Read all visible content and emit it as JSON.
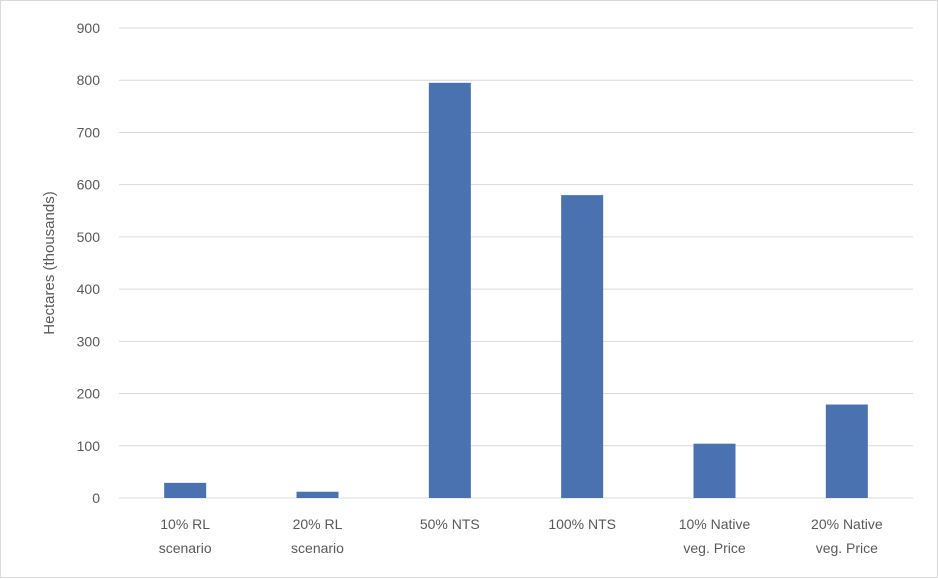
{
  "chart_data": {
    "type": "bar",
    "title": "",
    "xlabel": "",
    "ylabel": "Hectares (thousands)",
    "ylim": [
      0,
      900
    ],
    "yticks": [
      0,
      100,
      200,
      300,
      400,
      500,
      600,
      700,
      800,
      900
    ],
    "grid": true,
    "legend": "none",
    "bar_color": "#4a72b0",
    "grid_color": "#d9d9d9",
    "categories": [
      [
        "10% RL",
        "scenario"
      ],
      [
        "20% RL",
        "scenario"
      ],
      [
        "50% NTS"
      ],
      [
        "100% NTS"
      ],
      [
        "10% Native",
        "veg. Price"
      ],
      [
        "20% Native",
        "veg. Price"
      ]
    ],
    "values": [
      29,
      12,
      795,
      580,
      104,
      179
    ]
  }
}
